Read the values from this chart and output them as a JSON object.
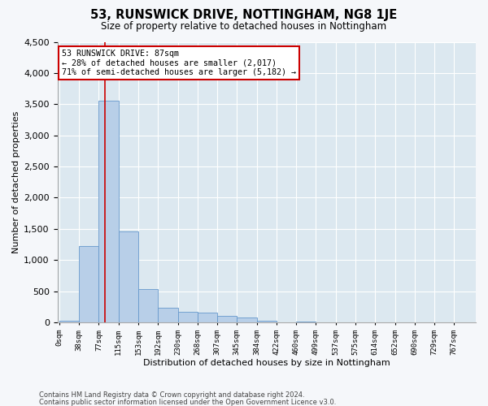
{
  "title1": "53, RUNSWICK DRIVE, NOTTINGHAM, NG8 1JE",
  "title2": "Size of property relative to detached houses in Nottingham",
  "xlabel": "Distribution of detached houses by size in Nottingham",
  "ylabel": "Number of detached properties",
  "bar_labels": [
    "0sqm",
    "38sqm",
    "77sqm",
    "115sqm",
    "153sqm",
    "192sqm",
    "230sqm",
    "268sqm",
    "307sqm",
    "345sqm",
    "384sqm",
    "422sqm",
    "460sqm",
    "499sqm",
    "537sqm",
    "575sqm",
    "614sqm",
    "652sqm",
    "690sqm",
    "729sqm",
    "767sqm"
  ],
  "bar_values": [
    30,
    1230,
    3560,
    1460,
    530,
    230,
    175,
    155,
    100,
    75,
    30,
    0,
    20,
    0,
    0,
    0,
    0,
    0,
    0,
    0,
    0
  ],
  "bar_color": "#b8cfe8",
  "bar_edge_color": "#6699cc",
  "property_line_x": 87,
  "ylim_max": 4500,
  "yticks": [
    0,
    500,
    1000,
    1500,
    2000,
    2500,
    3000,
    3500,
    4000,
    4500
  ],
  "annotation_line1": "53 RUNSWICK DRIVE: 87sqm",
  "annotation_line2": "← 28% of detached houses are smaller (2,017)",
  "annotation_line3": "71% of semi-detached houses are larger (5,182) →",
  "footnote1": "Contains HM Land Registry data © Crown copyright and database right 2024.",
  "footnote2": "Contains public sector information licensed under the Open Government Licence v3.0.",
  "fig_bg_color": "#f5f7fa",
  "plot_bg_color": "#dce8f0",
  "grid_color": "#ffffff",
  "bin_width": 38
}
